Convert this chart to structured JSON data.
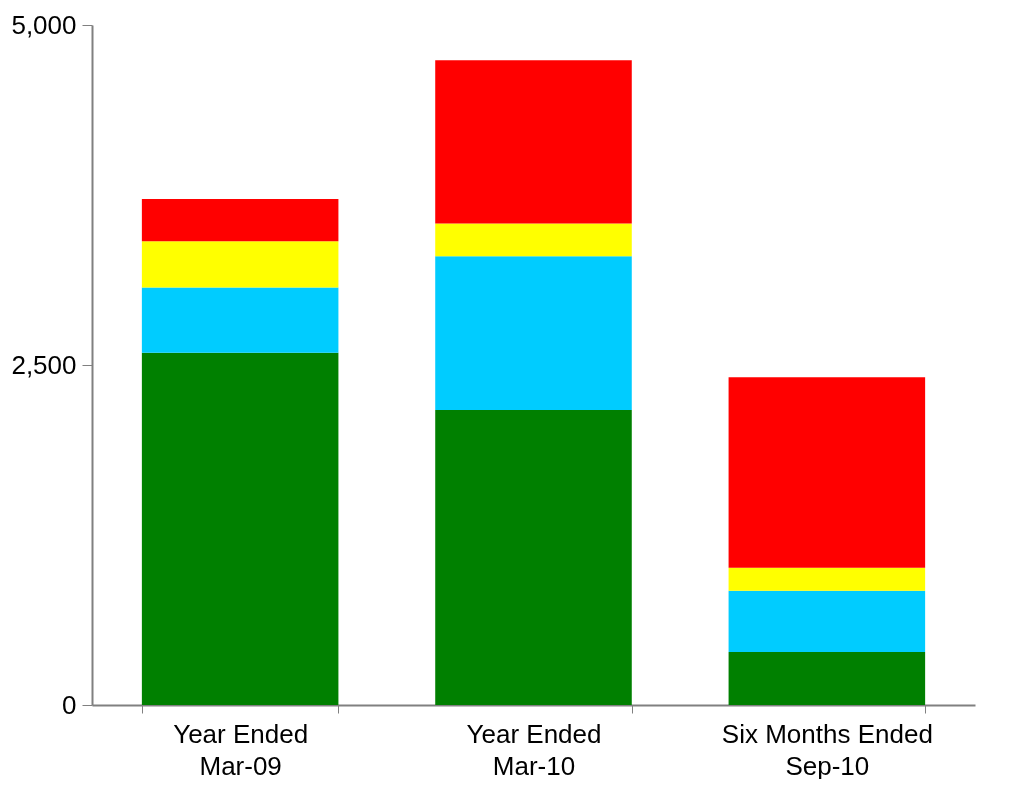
{
  "chart_data": {
    "type": "bar",
    "stacked": true,
    "categories": [
      "Year Ended\nMar-09",
      "Year Ended\nMar-10",
      "Six Months Ended\nSep-10"
    ],
    "series": [
      {
        "color": "#008000",
        "values": [
          2590,
          2170,
          390
        ]
      },
      {
        "color": "#00ccff",
        "values": [
          480,
          1130,
          450
        ]
      },
      {
        "color": "#ffff00",
        "values": [
          340,
          240,
          170
        ]
      },
      {
        "color": "#ff0000",
        "values": [
          310,
          1200,
          1400
        ]
      }
    ],
    "ylim": [
      0,
      5000
    ],
    "yticks": [
      0,
      {
        "value": 2500,
        "label": "2,500"
      },
      {
        "value": 5000,
        "label": "5,000"
      }
    ],
    "grid": false,
    "legend": false
  }
}
